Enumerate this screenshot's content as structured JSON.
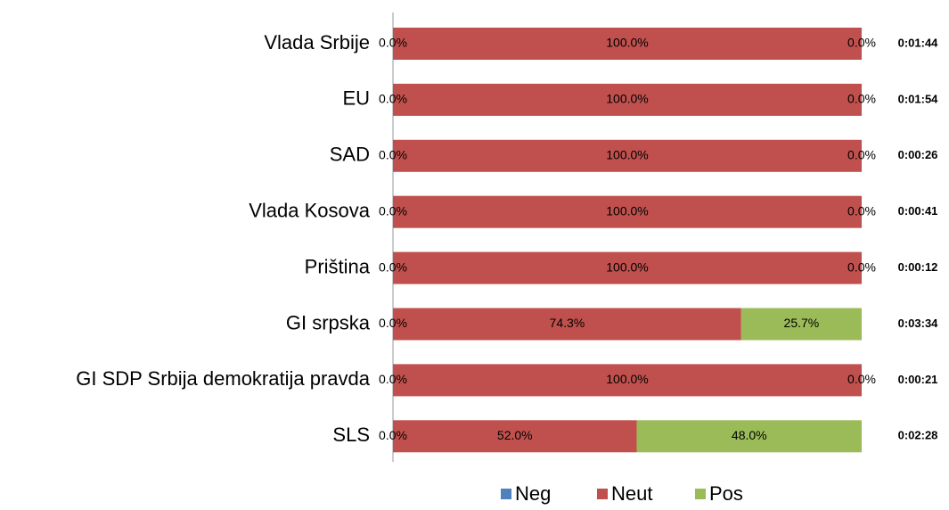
{
  "chart_data": {
    "type": "stacked-bar-horizontal",
    "categories": [
      "Vlada Srbije",
      "EU",
      "SAD",
      "Vlada Kosova",
      "Priština",
      "GI srpska",
      "GI SDP Srbija demokratija pravda",
      "SLS"
    ],
    "series": [
      {
        "name": "Neg",
        "color": "#4f81bd",
        "values": [
          0,
          0,
          0,
          0,
          0,
          0,
          0,
          0
        ],
        "value_labels": [
          "0.0%",
          "0.0%",
          "0.0%",
          "0.0%",
          "0.0%",
          "0.0%",
          "0.0%",
          "0.0%"
        ]
      },
      {
        "name": "Neut",
        "color": "#c0504d",
        "values": [
          100,
          100,
          100,
          100,
          100,
          74.3,
          100,
          52
        ],
        "value_labels": [
          "100.0%",
          "100.0%",
          "100.0%",
          "100.0%",
          "100.0%",
          "74.3%",
          "100.0%",
          "52.0%"
        ]
      },
      {
        "name": "Pos",
        "color": "#9bbb59",
        "values": [
          0,
          0,
          0,
          0,
          0,
          25.7,
          0,
          48
        ],
        "value_labels": [
          "0.0%",
          "0.0%",
          "0.0%",
          "0.0%",
          "0.0%",
          "25.7%",
          "0.0%",
          "48.0%"
        ]
      }
    ],
    "durations": [
      "0:01:44",
      "0:01:54",
      "0:00:26",
      "0:00:41",
      "0:00:12",
      "0:03:34",
      "0:00:21",
      "0:02:28"
    ],
    "xlim": [
      0,
      100
    ],
    "legend": "bottom"
  }
}
